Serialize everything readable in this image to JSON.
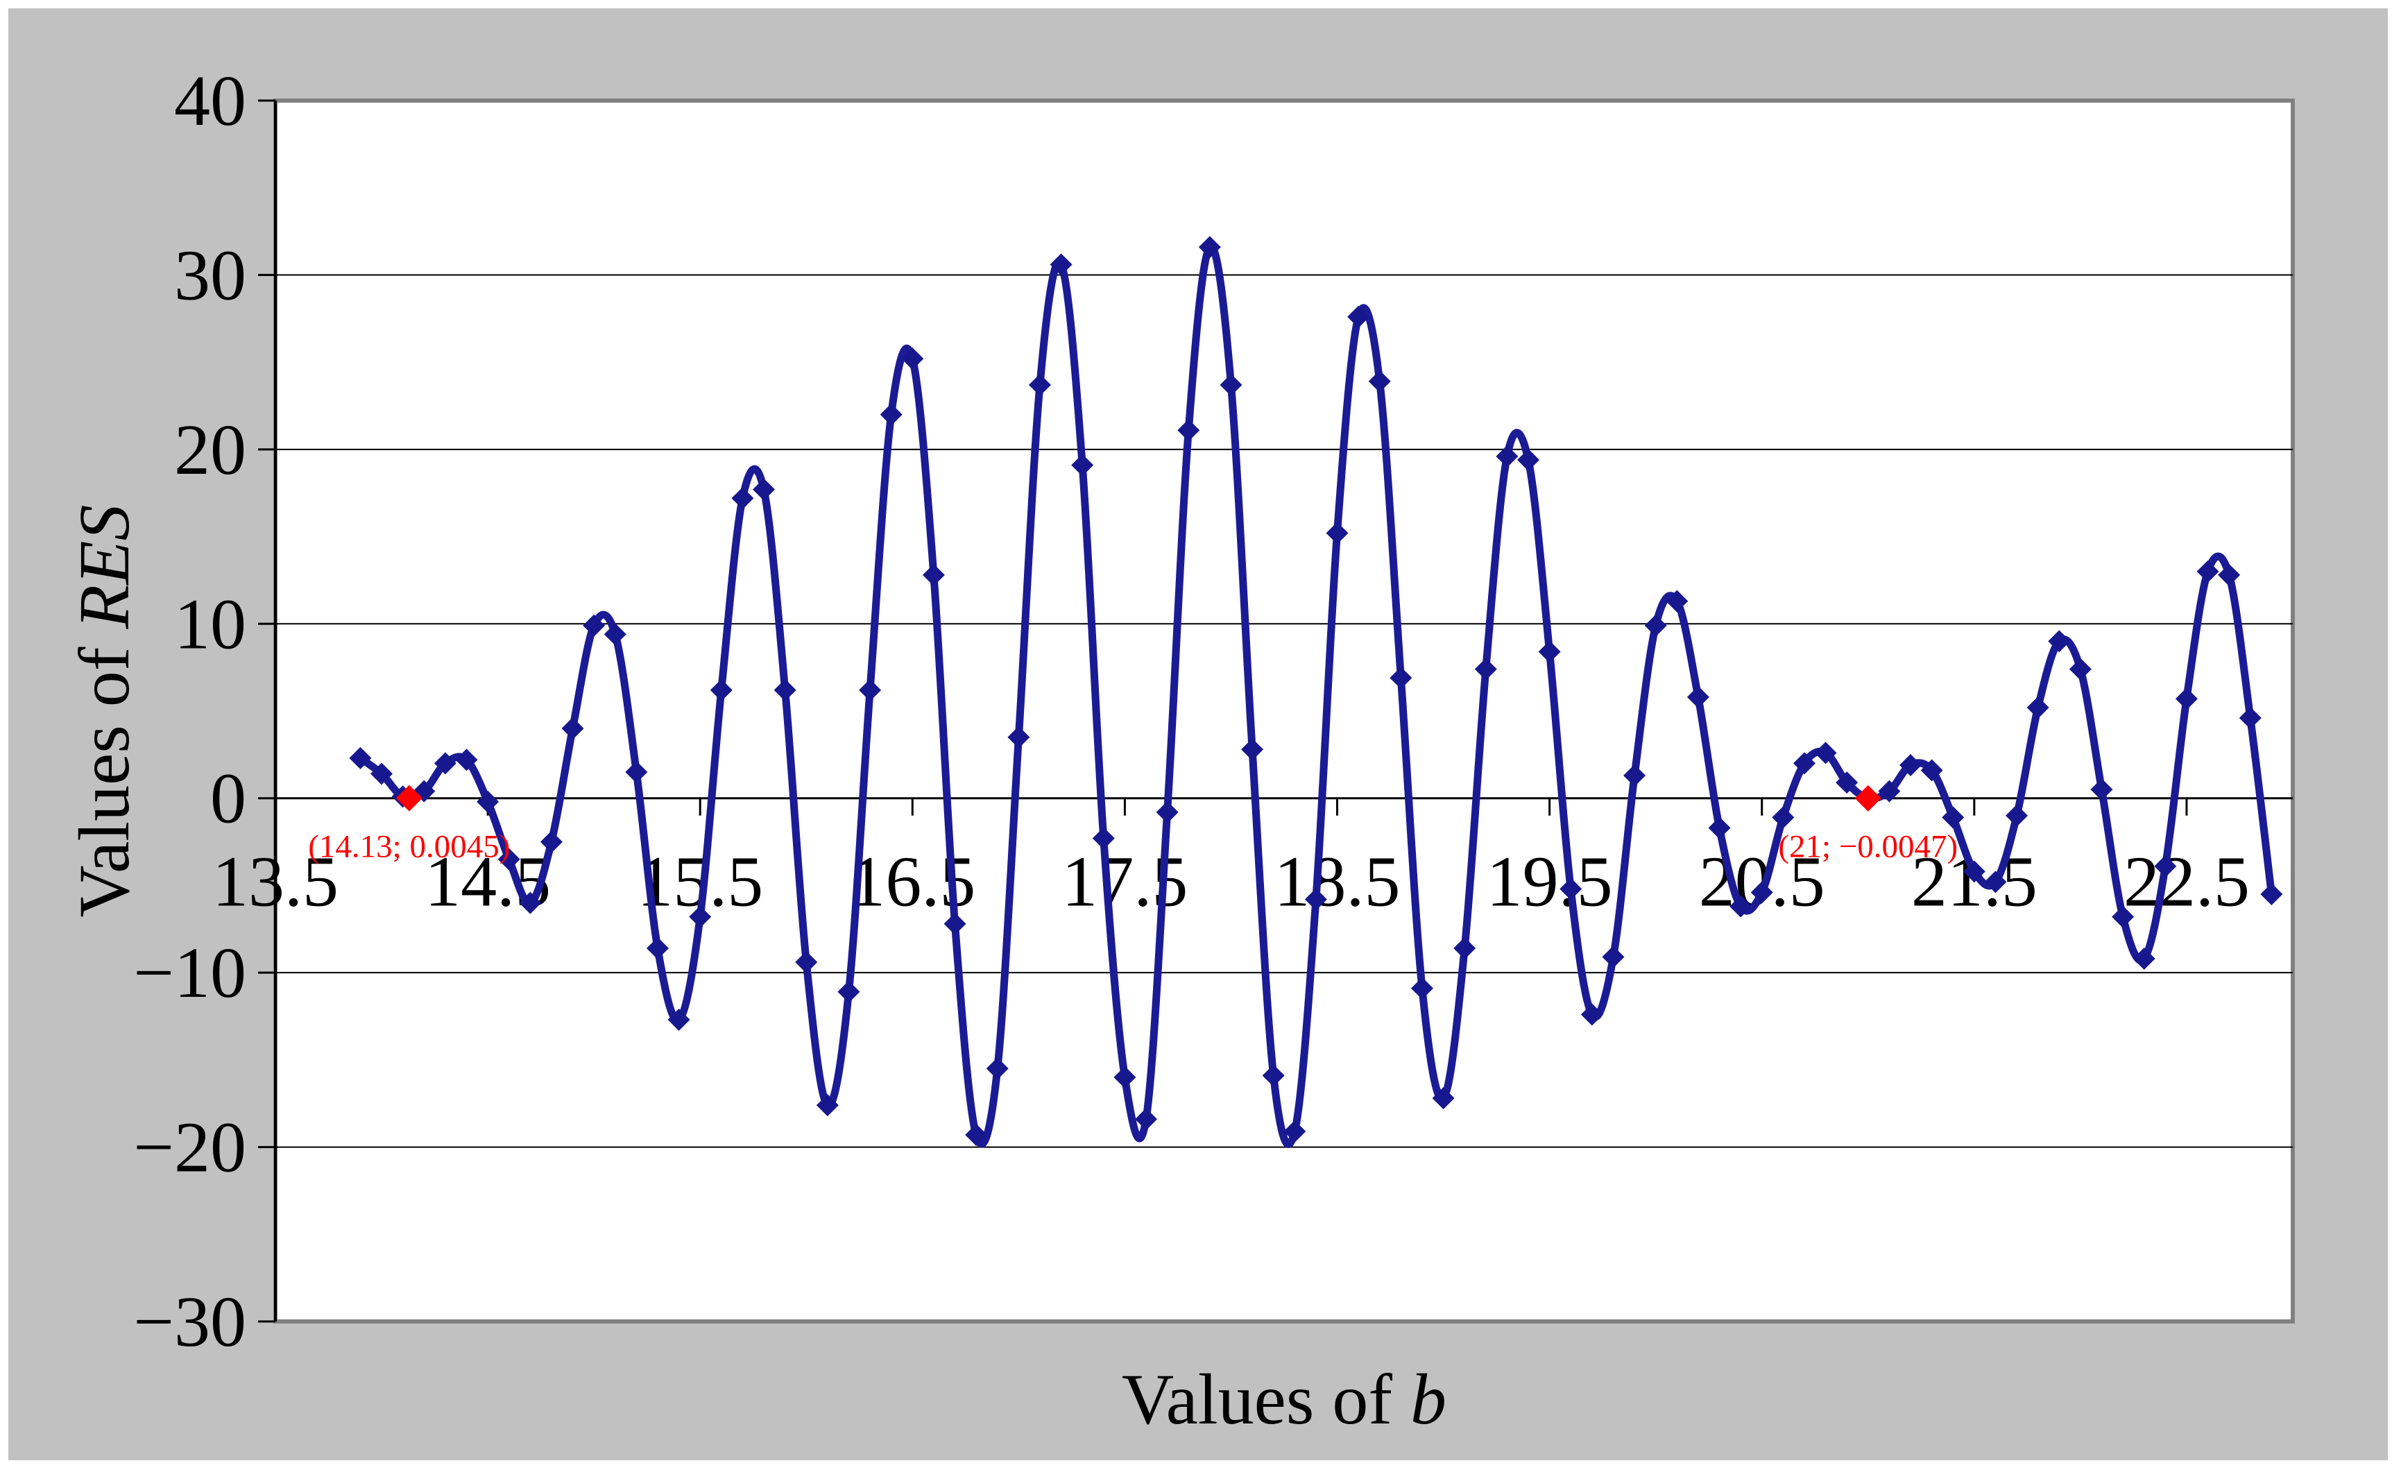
{
  "page": {
    "background_color": "#FFFFFF",
    "description": "Excel-style smoothed line chart of residual values RES versus parameter b"
  },
  "chart_data": {
    "type": "line",
    "title": "",
    "xlabel": "Values of b",
    "xlabel_regular": "Values of ",
    "xlabel_italic": "b",
    "ylabel": "Values of RES",
    "ylabel_regular": "Values of ",
    "ylabel_italic": "RES",
    "xlim": [
      13.5,
      23.0
    ],
    "ylim": [
      -30,
      40
    ],
    "x_tick_values": [
      13.5,
      14.5,
      15.5,
      16.5,
      17.5,
      18.5,
      19.5,
      20.5,
      21.5,
      22.5
    ],
    "x_tick_labels": [
      "13.5",
      "14.5",
      "15.5",
      "16.5",
      "17.5",
      "18.5",
      "19.5",
      "20.5",
      "21.5",
      "22.5"
    ],
    "y_tick_values": [
      40,
      30,
      20,
      10,
      0,
      -10,
      -20,
      -30
    ],
    "y_tick_labels": [
      "40",
      "30",
      "20",
      "10",
      "0",
      "−10",
      "−20",
      "−30"
    ],
    "y_gridline_values": [
      30,
      20,
      10,
      -10,
      -20
    ],
    "grid": true,
    "legend": "none",
    "x_start": 13.9,
    "x_step": 0.1,
    "series": [
      {
        "name": "RES",
        "marker": "diamond",
        "smoothed": true,
        "values": [
          2.3,
          1.4,
          0.1,
          0.4,
          2.0,
          2.2,
          -0.2,
          -3.5,
          -6.0,
          -2.5,
          4.0,
          9.9,
          9.4,
          1.5,
          -8.6,
          -12.7,
          -6.8,
          6.2,
          17.2,
          17.7,
          6.2,
          -9.4,
          -17.6,
          -11.1,
          6.2,
          22.0,
          25.2,
          12.8,
          -7.2,
          -19.3,
          -15.5,
          3.5,
          23.7,
          30.6,
          19.1,
          -2.3,
          -16.0,
          -18.4,
          -0.8,
          21.1,
          31.6,
          23.7,
          2.8,
          -15.9,
          -19.1,
          -5.8,
          15.2,
          27.6,
          23.9,
          6.9,
          -10.9,
          -17.2,
          -8.6,
          7.4,
          19.6,
          19.4,
          8.4,
          -5.2,
          -12.4,
          -9.1,
          1.3,
          9.9,
          11.3,
          5.8,
          -1.7,
          -6.2,
          -5.4,
          -1.1,
          2.0,
          2.6,
          0.9,
          0.0,
          0.4,
          1.9,
          1.6,
          -1.1,
          -4.2,
          -4.8,
          -1.0,
          5.2,
          9.0,
          7.4,
          0.5,
          -6.8,
          -9.2,
          -3.9,
          5.7,
          13.0,
          12.8,
          4.6,
          -5.5
        ]
      }
    ],
    "highlight_points": [
      {
        "x": 14.13,
        "y": 0.0045,
        "label": "(14.13; 0.0045)"
      },
      {
        "x": 21.0,
        "y": -0.0047,
        "label": "(21; −0.0047)"
      }
    ],
    "colors": {
      "chart_background": "#C1C1C1",
      "plot_background": "#FFFFFF",
      "plot_border": "#808080",
      "gridline": "#000000",
      "axis_line": "#000000",
      "tick_text": "#000000",
      "series_line": "#1B1B96",
      "series_marker": "#18188E",
      "highlight": "#FF0000"
    }
  }
}
